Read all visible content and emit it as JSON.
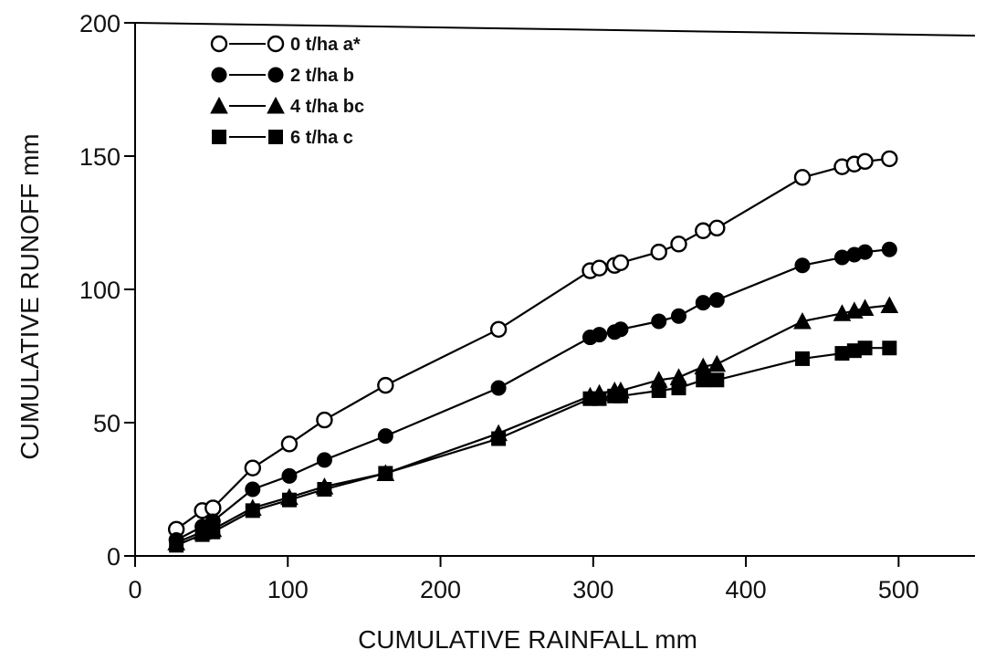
{
  "chart_data": {
    "type": "line",
    "title": "",
    "xlabel": "CUMULATIVE RAINFALL mm",
    "ylabel": "CUMULATIVE RUNOFF mm",
    "xlim": [
      0,
      550
    ],
    "ylim": [
      0,
      200
    ],
    "xticks": [
      0,
      100,
      200,
      300,
      400,
      500
    ],
    "yticks": [
      0,
      50,
      100,
      150,
      200
    ],
    "grid": false,
    "legend_position": "top-left",
    "series": [
      {
        "name": "0 t/ha a*",
        "marker": "open-circle",
        "color": "#000000",
        "points": [
          [
            27,
            10
          ],
          [
            44,
            17
          ],
          [
            51,
            18
          ],
          [
            77,
            33
          ],
          [
            101,
            42
          ],
          [
            124,
            51
          ],
          [
            164,
            64
          ],
          [
            238,
            85
          ],
          [
            298,
            107
          ],
          [
            304,
            108
          ],
          [
            314,
            109
          ],
          [
            318,
            110
          ],
          [
            343,
            114
          ],
          [
            356,
            117
          ],
          [
            372,
            122
          ],
          [
            381,
            123
          ],
          [
            437,
            142
          ],
          [
            463,
            146
          ],
          [
            471,
            147
          ],
          [
            478,
            148
          ],
          [
            494,
            149
          ]
        ]
      },
      {
        "name": "2 t/ha b",
        "marker": "filled-circle",
        "color": "#000000",
        "points": [
          [
            27,
            6
          ],
          [
            44,
            11
          ],
          [
            51,
            13
          ],
          [
            77,
            25
          ],
          [
            101,
            30
          ],
          [
            124,
            36
          ],
          [
            164,
            45
          ],
          [
            238,
            63
          ],
          [
            298,
            82
          ],
          [
            304,
            83
          ],
          [
            314,
            84
          ],
          [
            318,
            85
          ],
          [
            343,
            88
          ],
          [
            356,
            90
          ],
          [
            372,
            95
          ],
          [
            381,
            96
          ],
          [
            437,
            109
          ],
          [
            463,
            112
          ],
          [
            471,
            113
          ],
          [
            478,
            114
          ],
          [
            494,
            115
          ]
        ]
      },
      {
        "name": "4 t/ha bc",
        "marker": "filled-triangle",
        "color": "#000000",
        "points": [
          [
            27,
            5
          ],
          [
            44,
            9
          ],
          [
            51,
            10
          ],
          [
            77,
            18
          ],
          [
            101,
            22
          ],
          [
            124,
            26
          ],
          [
            164,
            31
          ],
          [
            238,
            46
          ],
          [
            298,
            60
          ],
          [
            304,
            61
          ],
          [
            314,
            62
          ],
          [
            318,
            62
          ],
          [
            343,
            66
          ],
          [
            356,
            67
          ],
          [
            372,
            71
          ],
          [
            381,
            72
          ],
          [
            437,
            88
          ],
          [
            463,
            91
          ],
          [
            471,
            92
          ],
          [
            478,
            93
          ],
          [
            494,
            94
          ]
        ]
      },
      {
        "name": "6 t/ha c",
        "marker": "filled-square",
        "color": "#000000",
        "points": [
          [
            27,
            4
          ],
          [
            44,
            8
          ],
          [
            51,
            9
          ],
          [
            77,
            17
          ],
          [
            101,
            21
          ],
          [
            124,
            25
          ],
          [
            164,
            31
          ],
          [
            238,
            44
          ],
          [
            298,
            59
          ],
          [
            304,
            59
          ],
          [
            314,
            60
          ],
          [
            318,
            60
          ],
          [
            343,
            62
          ],
          [
            356,
            63
          ],
          [
            372,
            66
          ],
          [
            381,
            66
          ],
          [
            437,
            74
          ],
          [
            463,
            76
          ],
          [
            471,
            77
          ],
          [
            478,
            78
          ],
          [
            494,
            78
          ]
        ]
      }
    ]
  }
}
